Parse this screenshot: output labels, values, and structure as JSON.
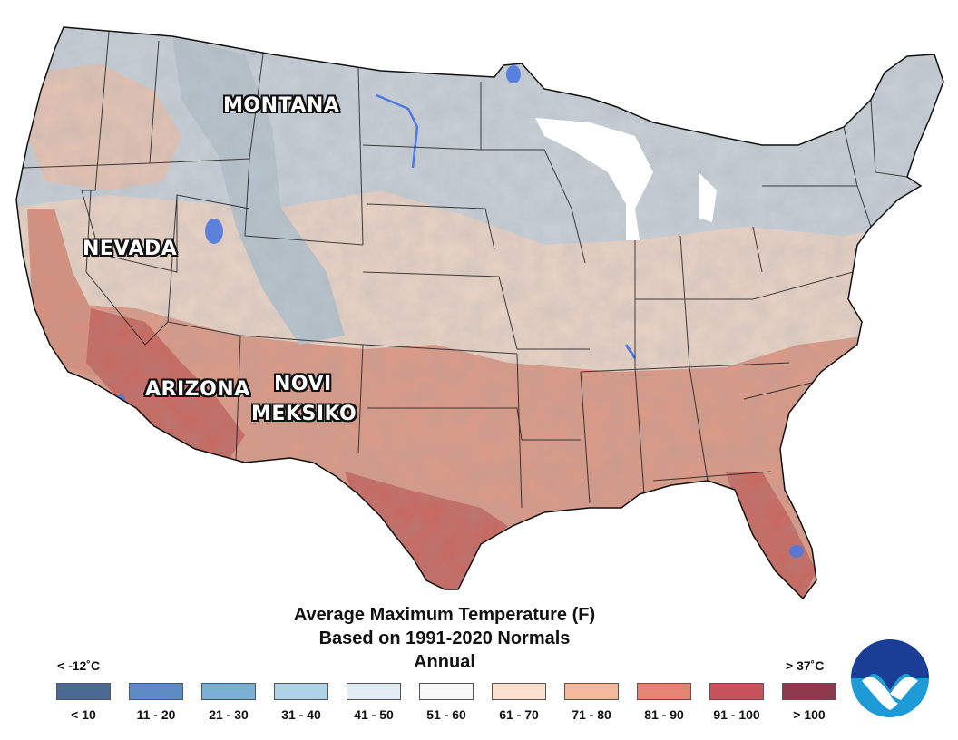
{
  "map": {
    "state_labels": [
      {
        "name": "montana",
        "text": "MONTANA"
      },
      {
        "name": "nevada",
        "text": "NEVADA"
      },
      {
        "name": "arizona",
        "text": "ARIZONA"
      },
      {
        "name": "new-mexico",
        "line1": "NOVI",
        "line2": "MEKSIKO"
      }
    ]
  },
  "title": {
    "line1": "Average Maximum Temperature (F)",
    "line2": "Based on 1991-2020 Normals",
    "line3": "Annual"
  },
  "legend": {
    "low_celsius": "< -12˚C",
    "high_celsius": "> 37˚C",
    "classes": [
      {
        "label": "< 10",
        "color": "#4a6a93"
      },
      {
        "label": "11 - 20",
        "color": "#5b8cc4"
      },
      {
        "label": "21 - 30",
        "color": "#7ab0d8"
      },
      {
        "label": "31 - 40",
        "color": "#aed2e6"
      },
      {
        "label": "41 - 50",
        "color": "#e1edf3"
      },
      {
        "label": "51 - 60",
        "color": "#f8f8f8"
      },
      {
        "label": "61 - 70",
        "color": "#fbe0d0"
      },
      {
        "label": "71 - 80",
        "color": "#f4b89a"
      },
      {
        "label": "81 - 90",
        "color": "#e38570"
      },
      {
        "label": "91 - 100",
        "color": "#c9535a"
      },
      {
        "label": "> 100",
        "color": "#8d3a4c"
      }
    ]
  },
  "colors": {
    "cold_gray": "#c9cfd6",
    "cool_tan": "#e9d2c4",
    "warm_salmon": "#dc9a86",
    "hot_red": "#c9695f",
    "water": "#4f78e0",
    "border": "#222222"
  },
  "logo": {
    "name": "noaa-logo"
  }
}
